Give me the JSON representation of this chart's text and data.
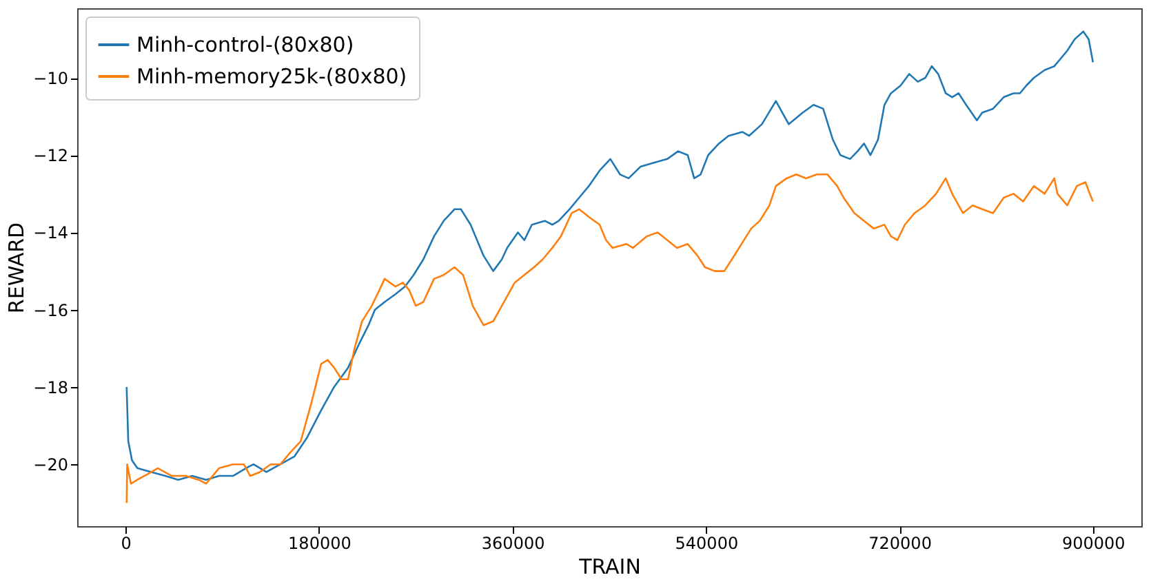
{
  "chart_data": {
    "type": "line",
    "xlabel": "TRAIN",
    "ylabel": "REWARD",
    "xlim": [
      -45000,
      945000
    ],
    "xticks": [
      0,
      180000,
      360000,
      540000,
      720000,
      900000
    ],
    "ylim": [
      -21.6,
      -8.2
    ],
    "yticks": [
      -20,
      -18,
      -16,
      -14,
      -12,
      -10
    ],
    "grid": false,
    "legend": "top left",
    "series": [
      {
        "name": "Minh-control-(80x80)",
        "color": "#1f77b4",
        "x": [
          1000,
          2500,
          6000,
          11000,
          24000,
          37000,
          49000,
          62000,
          75000,
          87000,
          100000,
          112000,
          119000,
          131000,
          144000,
          157000,
          169000,
          182000,
          194000,
          207000,
          217000,
          226000,
          232000,
          241000,
          251000,
          260000,
          268000,
          277000,
          287000,
          296000,
          306000,
          312000,
          321000,
          327000,
          333000,
          342000,
          350000,
          355000,
          365000,
          371000,
          378000,
          390000,
          397000,
          403000,
          413000,
          422000,
          431000,
          441000,
          451000,
          460000,
          468000,
          479000,
          491000,
          504000,
          514000,
          523000,
          529000,
          535000,
          542000,
          552000,
          561000,
          574000,
          580000,
          592000,
          605000,
          611000,
          617000,
          630000,
          640000,
          649000,
          658000,
          665000,
          674000,
          681000,
          687000,
          693000,
          700000,
          706000,
          712000,
          721000,
          729000,
          737000,
          744000,
          750000,
          756000,
          763000,
          769000,
          775000,
          782000,
          792000,
          797000,
          807000,
          817000,
          826000,
          832000,
          838000,
          845000,
          855000,
          864000,
          876000,
          883000,
          891000,
          896000,
          900000
        ],
        "values": [
          -18.0,
          -19.4,
          -19.9,
          -20.1,
          -20.2,
          -20.3,
          -20.4,
          -20.3,
          -20.4,
          -20.3,
          -20.3,
          -20.1,
          -20.0,
          -20.2,
          -20.0,
          -19.8,
          -19.3,
          -18.6,
          -18.0,
          -17.5,
          -16.9,
          -16.4,
          -16.0,
          -15.8,
          -15.6,
          -15.4,
          -15.1,
          -14.7,
          -14.1,
          -13.7,
          -13.4,
          -13.4,
          -13.8,
          -14.2,
          -14.6,
          -15.0,
          -14.7,
          -14.4,
          -14.0,
          -14.2,
          -13.8,
          -13.7,
          -13.8,
          -13.7,
          -13.4,
          -13.1,
          -12.8,
          -12.4,
          -12.1,
          -12.5,
          -12.6,
          -12.3,
          -12.2,
          -12.1,
          -11.9,
          -12.0,
          -12.6,
          -12.5,
          -12.0,
          -11.7,
          -11.5,
          -11.4,
          -11.5,
          -11.2,
          -10.6,
          -10.9,
          -11.2,
          -10.9,
          -10.7,
          -10.8,
          -11.6,
          -12.0,
          -12.1,
          -11.9,
          -11.7,
          -12.0,
          -11.6,
          -10.7,
          -10.4,
          -10.2,
          -9.9,
          -10.1,
          -10.0,
          -9.7,
          -9.9,
          -10.4,
          -10.5,
          -10.4,
          -10.7,
          -11.1,
          -10.9,
          -10.8,
          -10.5,
          -10.4,
          -10.4,
          -10.2,
          -10.0,
          -9.8,
          -9.7,
          -9.3,
          -9.0,
          -8.8,
          -9.0,
          -9.6
        ]
      },
      {
        "name": "Minh-memory25k-(80x80)",
        "color": "#ff7f0e",
        "x": [
          1000,
          1500,
          5000,
          11000,
          24000,
          30000,
          43000,
          56000,
          68000,
          75000,
          87000,
          100000,
          110000,
          116000,
          125000,
          135000,
          144000,
          153000,
          163000,
          173000,
          182000,
          188000,
          194000,
          201000,
          207000,
          213000,
          220000,
          229000,
          236000,
          241000,
          251000,
          258000,
          264000,
          270000,
          277000,
          287000,
          296000,
          306000,
          314000,
          323000,
          333000,
          342000,
          352000,
          362000,
          371000,
          380000,
          388000,
          397000,
          405000,
          415000,
          422000,
          431000,
          441000,
          447000,
          453000,
          466000,
          472000,
          485000,
          495000,
          504000,
          513000,
          523000,
          532000,
          539000,
          548000,
          557000,
          564000,
          573000,
          582000,
          590000,
          599000,
          605000,
          615000,
          624000,
          633000,
          643000,
          653000,
          662000,
          668000,
          678000,
          687000,
          696000,
          706000,
          712000,
          718000,
          725000,
          734000,
          744000,
          754000,
          763000,
          769000,
          779000,
          788000,
          797000,
          807000,
          817000,
          826000,
          835000,
          845000,
          855000,
          864000,
          867000,
          876000,
          885000,
          893000,
          897000,
          900000
        ],
        "values": [
          -21.0,
          -20.0,
          -20.5,
          -20.4,
          -20.2,
          -20.1,
          -20.3,
          -20.3,
          -20.4,
          -20.5,
          -20.1,
          -20.0,
          -20.0,
          -20.3,
          -20.2,
          -20.0,
          -20.0,
          -19.7,
          -19.4,
          -18.4,
          -17.4,
          -17.3,
          -17.5,
          -17.8,
          -17.8,
          -17.0,
          -16.3,
          -15.9,
          -15.5,
          -15.2,
          -15.4,
          -15.3,
          -15.5,
          -15.9,
          -15.8,
          -15.2,
          -15.1,
          -14.9,
          -15.1,
          -15.9,
          -16.4,
          -16.3,
          -15.8,
          -15.3,
          -15.1,
          -14.9,
          -14.7,
          -14.4,
          -14.1,
          -13.5,
          -13.4,
          -13.6,
          -13.8,
          -14.2,
          -14.4,
          -14.3,
          -14.4,
          -14.1,
          -14.0,
          -14.2,
          -14.4,
          -14.3,
          -14.6,
          -14.9,
          -15.0,
          -15.0,
          -14.7,
          -14.3,
          -13.9,
          -13.7,
          -13.3,
          -12.8,
          -12.6,
          -12.5,
          -12.6,
          -12.5,
          -12.5,
          -12.8,
          -13.1,
          -13.5,
          -13.7,
          -13.9,
          -13.8,
          -14.1,
          -14.2,
          -13.8,
          -13.5,
          -13.3,
          -13.0,
          -12.6,
          -13.0,
          -13.5,
          -13.3,
          -13.4,
          -13.5,
          -13.1,
          -13.0,
          -13.2,
          -12.8,
          -13.0,
          -12.6,
          -13.0,
          -13.3,
          -12.8,
          -12.7,
          -13.0,
          -13.2
        ]
      }
    ]
  }
}
